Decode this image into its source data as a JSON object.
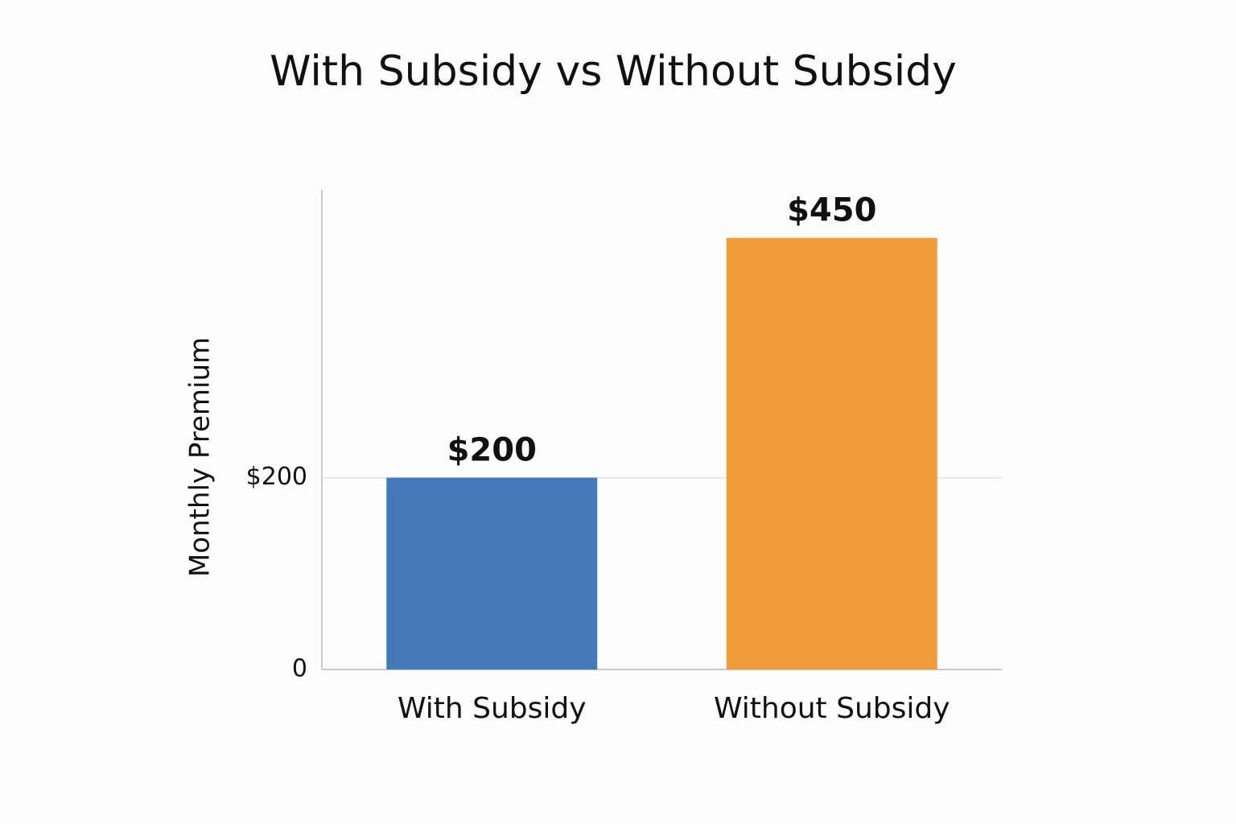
{
  "chart_data": {
    "type": "bar",
    "title": "With Subsidy vs Without Subsidy",
    "y_label": "Monthly Premium",
    "categories": [
      "With Subsidy",
      "Without Subsidy"
    ],
    "values": [
      200,
      450
    ],
    "value_labels": [
      "$200",
      "$450"
    ],
    "colors": [
      "#4479ba",
      "#f09c3a"
    ],
    "ylim": [
      0,
      500
    ],
    "yticks": [
      0,
      {
        "value": 200,
        "label": "$200"
      }
    ],
    "grid": true
  }
}
